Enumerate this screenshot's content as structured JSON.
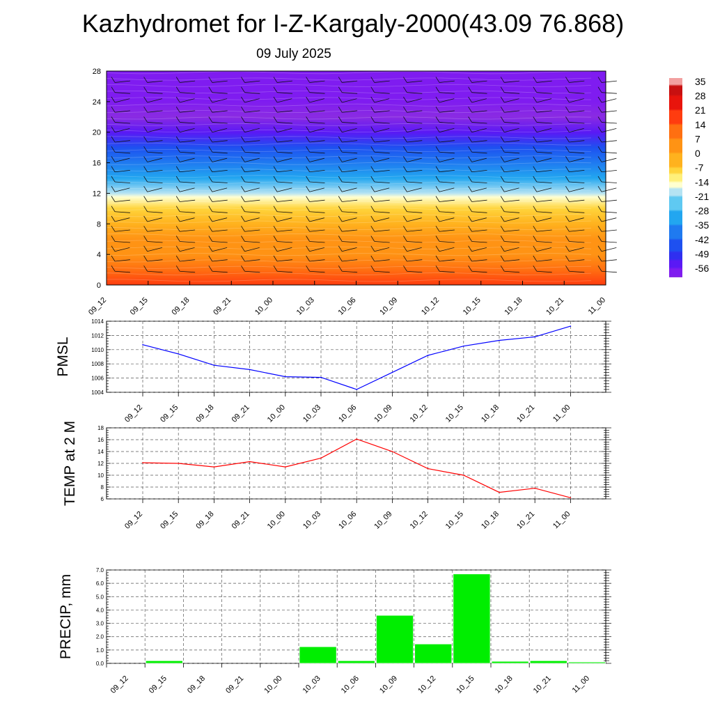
{
  "title": "Kazhydromet for I-Z-Kargaly-2000(43.09 76.868)",
  "date": "09 July 2025",
  "time_labels": [
    "09_12",
    "09_15",
    "09_18",
    "09_21",
    "10_00",
    "10_03",
    "10_06",
    "10_09",
    "10_12",
    "10_15",
    "10_18",
    "10_21",
    "11_00"
  ],
  "colors": {
    "pmsl_line": "#0000ff",
    "temp_line": "#ff0000",
    "precip_bar": "#00ee00",
    "grid": "#555555"
  },
  "chart_data": [
    {
      "type": "heatmap",
      "name": "temperature cross-section with wind barbs",
      "x": [
        "09_12",
        "09_15",
        "09_18",
        "09_21",
        "10_00",
        "10_03",
        "10_06",
        "10_09",
        "10_12",
        "10_15",
        "10_18",
        "10_21",
        "11_00"
      ],
      "y_ticks": [
        0,
        4,
        8,
        12,
        16,
        20,
        24,
        28
      ],
      "ylim": [
        0,
        28
      ],
      "colorbar": {
        "labels": [
          "35",
          "28",
          "21",
          "14",
          "7",
          "0",
          "-7",
          "-14",
          "-21",
          "-28",
          "-35",
          "-42",
          "-49",
          "-56"
        ],
        "range": [
          -60,
          37
        ]
      },
      "temperature_profile": [
        {
          "y": 0,
          "value": 16
        },
        {
          "y": 2,
          "value": 12
        },
        {
          "y": 4,
          "value": 7
        },
        {
          "y": 6,
          "value": 2
        },
        {
          "y": 8,
          "value": -3
        },
        {
          "y": 10,
          "value": -8
        },
        {
          "y": 11.5,
          "value": -14
        },
        {
          "y": 12,
          "value": -18
        },
        {
          "y": 14,
          "value": -28
        },
        {
          "y": 16,
          "value": -38
        },
        {
          "y": 18,
          "value": -47
        },
        {
          "y": 20,
          "value": -55
        },
        {
          "y": 22,
          "value": -60
        },
        {
          "y": 24,
          "value": -58
        },
        {
          "y": 26,
          "value": -57
        },
        {
          "y": 28,
          "value": -56
        }
      ]
    },
    {
      "type": "line",
      "ylabel": "PMSL",
      "categories": [
        "09_12",
        "09_15",
        "09_18",
        "09_21",
        "10_00",
        "10_03",
        "10_06",
        "10_09",
        "10_12",
        "10_15",
        "10_18",
        "10_21",
        "11_00"
      ],
      "values": [
        1010.7,
        1009.4,
        1007.8,
        1007.2,
        1006.2,
        1006.1,
        1004.4,
        1006.8,
        1009.2,
        1010.5,
        1011.3,
        1011.8,
        1013.3
      ],
      "ylim": [
        1004,
        1014
      ],
      "y_ticks": [
        "1004",
        "1006",
        "1008",
        "1010",
        "1012",
        "1014"
      ],
      "grid": true
    },
    {
      "type": "line",
      "ylabel": "TEMP at 2 M",
      "categories": [
        "09_12",
        "09_15",
        "09_18",
        "09_21",
        "10_00",
        "10_03",
        "10_06",
        "10_09",
        "10_12",
        "10_15",
        "10_18",
        "10_21",
        "11_00"
      ],
      "values": [
        12.1,
        12.0,
        11.4,
        12.3,
        11.4,
        12.9,
        16.1,
        14.0,
        11.1,
        10.0,
        7.1,
        7.8,
        6.2
      ],
      "ylim": [
        6,
        18
      ],
      "y_ticks": [
        "6",
        "8",
        "10",
        "12",
        "14",
        "16",
        "18"
      ],
      "grid": true
    },
    {
      "type": "bar",
      "ylabel": "PRECIP, mm",
      "categories": [
        "09_12",
        "09_15",
        "09_18",
        "09_21",
        "10_00",
        "10_03",
        "10_06",
        "10_09",
        "10_12",
        "10_15",
        "10_18",
        "10_21",
        "11_00"
      ],
      "values": [
        0.0,
        0.2,
        0.0,
        0.0,
        0.0,
        1.25,
        0.2,
        3.6,
        1.45,
        6.7,
        0.15,
        0.2,
        0.1
      ],
      "ylim": [
        0,
        7
      ],
      "y_ticks": [
        "0.0",
        "1.0",
        "2.0",
        "3.0",
        "4.0",
        "5.0",
        "6.0",
        "7.0"
      ],
      "grid": true
    }
  ]
}
